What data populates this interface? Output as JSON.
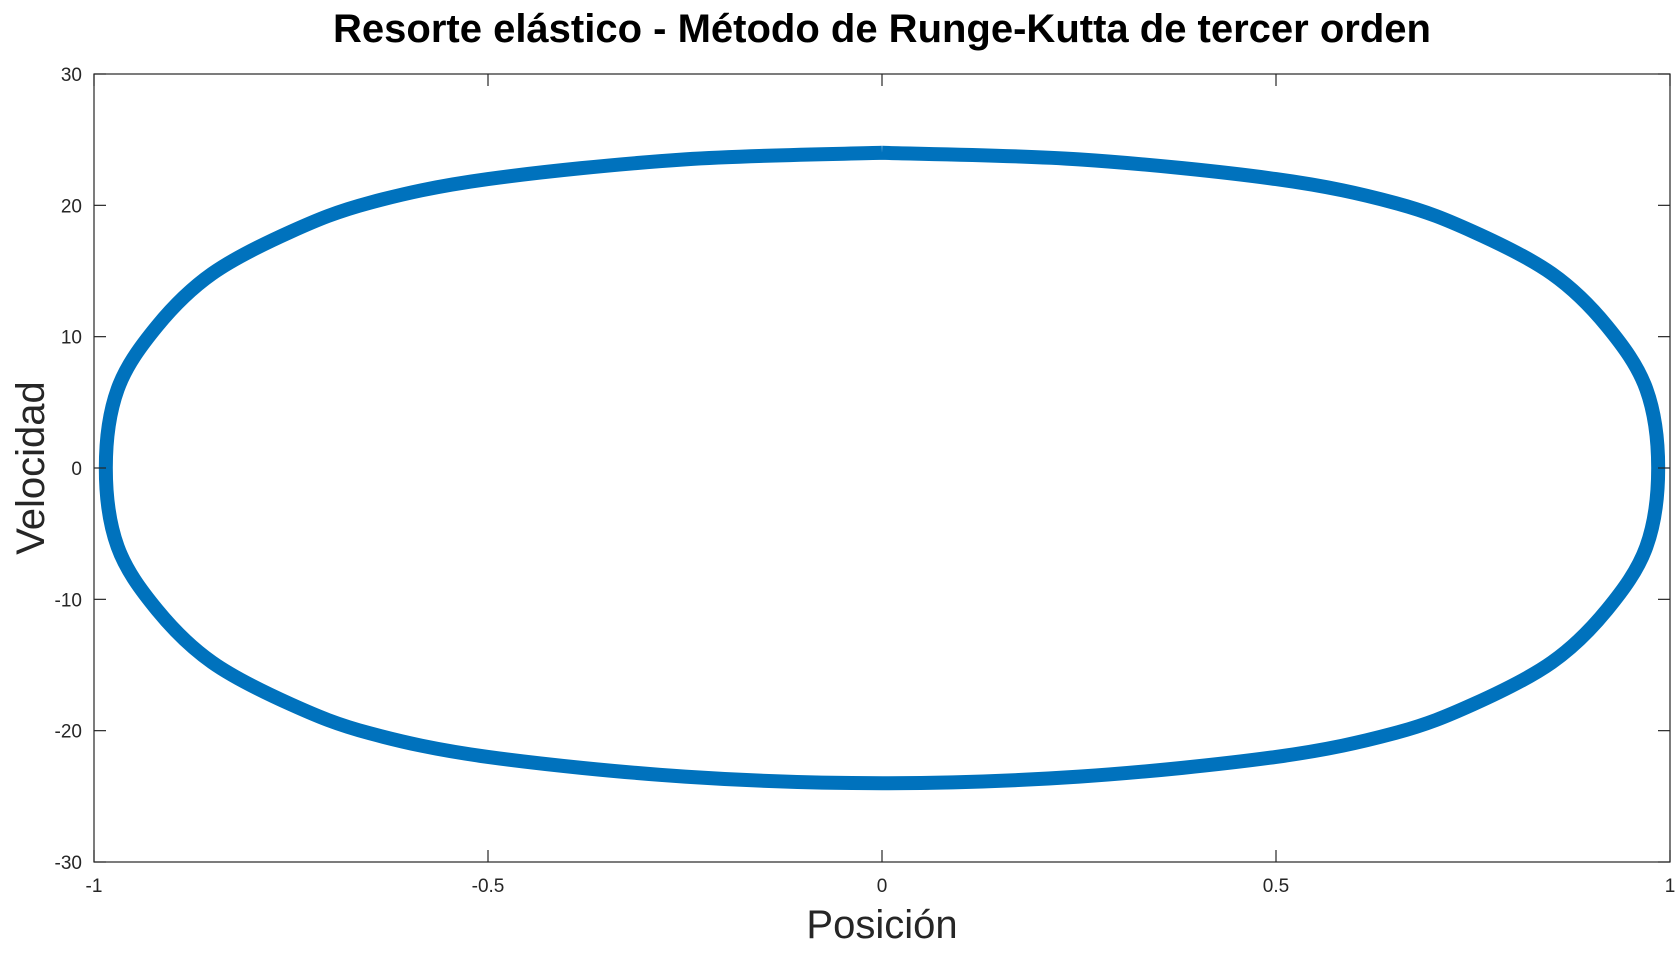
{
  "chart_data": {
    "type": "line",
    "title": "Resorte elástico - Método de Runge-Kutta de tercer orden",
    "xlabel": "Posición",
    "ylabel": "Velocidad",
    "xlim": [
      -1,
      1
    ],
    "ylim": [
      -30,
      30
    ],
    "xticks": [
      -1,
      -0.5,
      0,
      0.5,
      1
    ],
    "xtick_labels": [
      "-1",
      "-0.5",
      "0",
      "0.5",
      "1"
    ],
    "yticks": [
      -30,
      -20,
      -10,
      0,
      10,
      20,
      30
    ],
    "ytick_labels": [
      "-30",
      "-20",
      "-10",
      "0",
      "10",
      "20",
      "30"
    ],
    "grid": false,
    "legend": "none",
    "series": [
      {
        "color": "#0072BD",
        "x": [
          0,
          0.25,
          0.5,
          0.65,
          0.75,
          0.85,
          0.92,
          0.97,
          0.985,
          0.97,
          0.92,
          0.85,
          0.75,
          0.65,
          0.5,
          0.25,
          0,
          -0.25,
          -0.5,
          -0.65,
          -0.75,
          -0.85,
          -0.92,
          -0.97,
          -0.985,
          -0.97,
          -0.92,
          -0.85,
          -0.75,
          -0.65,
          -0.5,
          -0.25,
          0
        ],
        "y": [
          24,
          23.5,
          22,
          20.2,
          18,
          14.8,
          10.8,
          6,
          0,
          -6,
          -10.8,
          -14.8,
          -18,
          -20.2,
          -22,
          -23.5,
          -24,
          -23.5,
          -22,
          -20.2,
          -18,
          -14.8,
          -10.8,
          -6,
          0,
          6,
          10.8,
          14.8,
          18,
          20.2,
          22,
          23.5,
          24
        ]
      }
    ]
  }
}
